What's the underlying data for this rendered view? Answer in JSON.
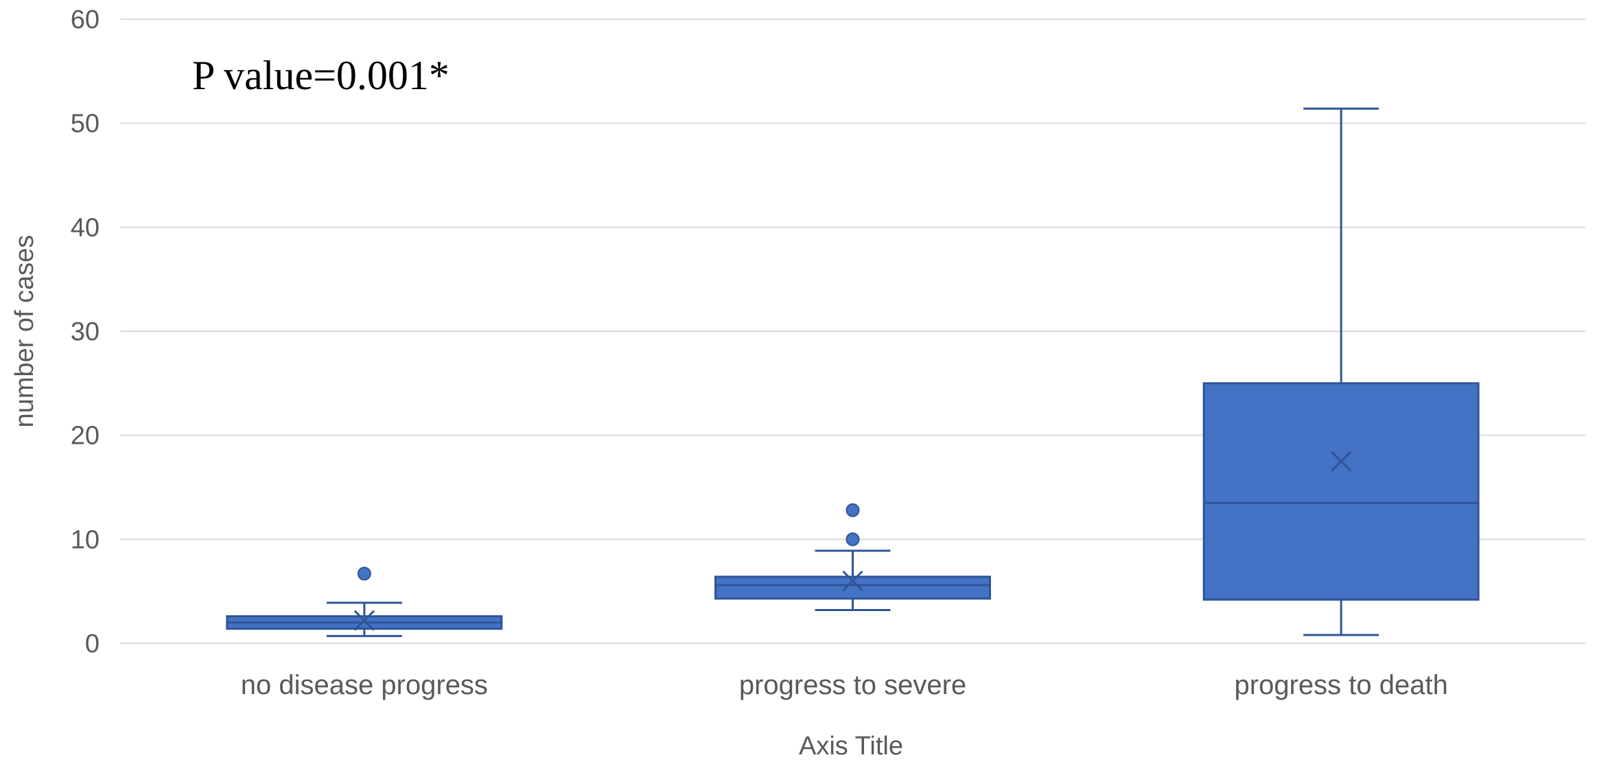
{
  "chart_data": {
    "type": "box",
    "title": "",
    "xlabel": "Axis Title",
    "ylabel": "number of cases",
    "ylim": [
      0,
      60
    ],
    "yticks": [
      "0",
      "10",
      "20",
      "30",
      "40",
      "50",
      "60"
    ],
    "ytick_values": [
      0,
      10,
      20,
      30,
      40,
      50,
      60
    ],
    "grid": true,
    "annotation": "P value=0.001*",
    "colors": {
      "box_fill": "#4472C4",
      "box_stroke": "#2F5597",
      "grid": "#D9D9D9",
      "text": "#595959"
    },
    "categories": [
      "no disease progress",
      "progress to severe",
      "progress to death"
    ],
    "boxes": [
      {
        "category": "no disease progress",
        "min": 0.7,
        "q1": 1.4,
        "median": 2.0,
        "q3": 2.6,
        "max": 3.9,
        "mean": 2.2,
        "outliers": [
          6.7
        ]
      },
      {
        "category": "progress to severe",
        "min": 3.2,
        "q1": 4.3,
        "median": 5.6,
        "q3": 6.4,
        "max": 8.9,
        "mean": 6.0,
        "outliers": [
          10.0,
          12.8
        ]
      },
      {
        "category": "progress to death",
        "min": 0.8,
        "q1": 4.2,
        "median": 13.5,
        "q3": 25.0,
        "max": 51.4,
        "mean": 17.5,
        "outliers": []
      }
    ]
  }
}
